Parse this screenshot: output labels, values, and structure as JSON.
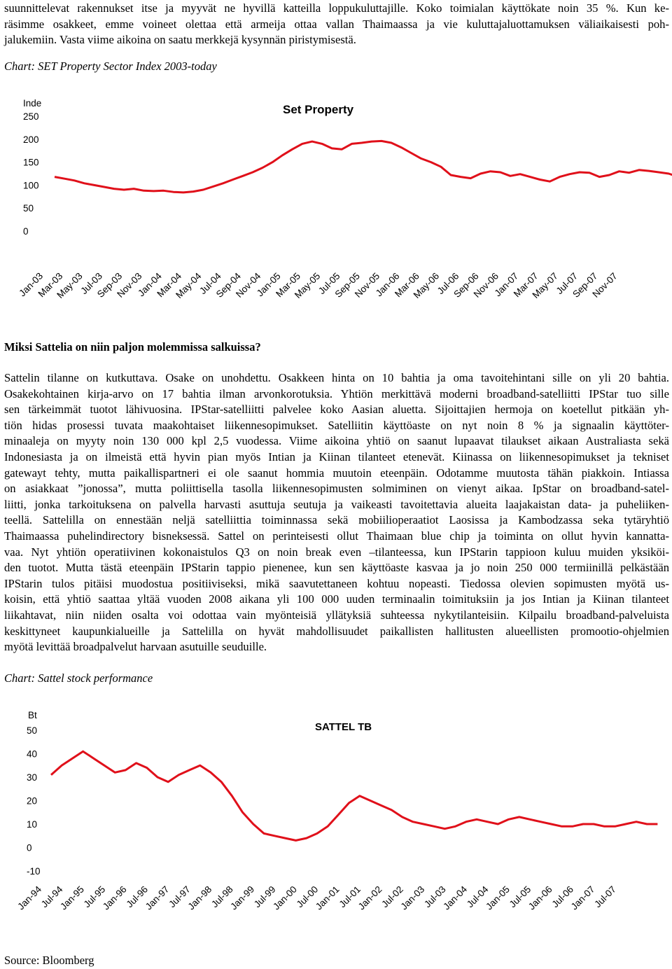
{
  "intro": {
    "lines": [
      "suunnittelevat rakennukset itse ja myyvät ne hyvillä katteilla loppukuluttajille. Koko toimialan käyttökate noin 35 %. Kun ke-",
      "räsimme osakkeet, emme voineet olettaa että armeija ottaa vallan Thaimaassa ja vie kuluttajaluottamuksen väliaikaisesti poh-",
      "jalukemiin. Vasta viime aikoina on saatu merkkejä kysynnän piristymisestä."
    ]
  },
  "chart1_caption": "Chart: SET Property Sector Index 2003-today",
  "section_heading": "Miksi Sattelia on niin paljon molemmissa salkuissa?",
  "body": {
    "lines": [
      "Sattelin tilanne on kutkuttava. Osake on unohdettu. Osakkeen hinta on 10 bahtia ja oma tavoitehintani sille on yli 20 bahtia.",
      "Osakekohtainen kirja-arvo on 17 bahtia ilman arvonkorotuksia. Yhtiön merkittävä moderni broadband-satelliitti IPStar tuo sille",
      "sen tärkeimmät tuotot lähivuosina. IPStar-satelliitti palvelee koko Aasian aluetta. Sijoittajien hermoja on koetellut pitkään yh-",
      "tiön hidas prosessi tuvata maakohtaiset liikennesopimukset. Satelliitin käyttöaste on nyt noin 8 % ja signaalin käyttöter-",
      "minaaleja on myyty noin 130 000 kpl 2,5 vuodessa. Viime aikoina yhtiö on saanut lupaavat tilaukset aikaan Australiasta sekä",
      "Indonesiasta ja on ilmeistä että hyvin pian myös Intian ja Kiinan tilanteet etenevät. Kiinassa on liikennesopimukset ja tekniset",
      "gatewayt tehty, mutta paikallispartneri ei ole saanut hommia muutoin eteenpäin. Odotamme muutosta tähän piakkoin. Intiassa",
      "on asiakkaat ”jonossa”, mutta poliittisella tasolla liikennesopimusten solmiminen on vienyt aikaa. IpStar on broadband-satel-",
      "liitti, jonka tarkoituksena on palvella harvasti asuttuja seutuja ja vaikeasti tavoitettavia alueita laajakaistan data- ja puheliiken-",
      "teellä. Sattelilla on ennestään neljä satelliittia toiminnassa sekä mobiilioperaatiot Laosissa ja Kambodzassa seka tytäryhtiö",
      "Thaimaassa puhelindirectory bisneksessä. Sattel on perinteisesti ollut Thaimaan blue chip ja toiminta on ollut hyvin kannatta-",
      "vaa. Nyt yhtiön operatiivinen kokonaistulos Q3 on noin break even –tilanteessa, kun IPStarin tappioon kuluu muiden yksiköi-",
      "den tuotot. Mutta tästä eteenpäin IPStarin tappio pienenee, kun sen käyttöaste kasvaa ja jo noin 250 000 termiinillä pelkästään",
      "IPStarin tulos pitäisi muodostua positiiviseksi, mikä saavutettaneen kohtuu nopeasti. Tiedossa olevien sopimusten myötä us-",
      "koisin, että yhtiö saattaa yltää vuoden 2008 aikana yli 100 000 uuden terminaalin toimituksiin ja jos Intian ja Kiinan tilanteet",
      "liikahtavat, niin niiden osalta voi odottaa vain myönteisiä yllätyksiä suhteessa nykytilanteisiin. Kilpailu broadband-palveluista",
      "keskittyneet kaupunkialueille ja Sattelilla on hyvät mahdollisuudet paikallisten hallitusten alueellisten promootio-ohjelmien",
      "myötä levittää broadpalvelut harvaan asutuille seuduille."
    ]
  },
  "chart2_caption": "Chart: Sattel stock performance",
  "source": "Source: Bloomberg",
  "colors": {
    "series": "#e0101a",
    "text": "#000000"
  },
  "chart_data": [
    {
      "type": "line",
      "title": "Set Property",
      "ylabel": "Inde",
      "ylim": [
        0,
        250
      ],
      "yticks": [
        "250",
        "200",
        "150",
        "100",
        "50",
        "0"
      ],
      "categories": [
        "Jan-03",
        "Mar-03",
        "May-03",
        "Jul-03",
        "Sep-03",
        "Nov-03",
        "Jan-04",
        "Mar-04",
        "May-04",
        "Jul-04",
        "Sep-04",
        "Nov-04",
        "Jan-05",
        "Mar-05",
        "May-05",
        "Jul-05",
        "Sep-05",
        "Nov-05",
        "Jan-06",
        "Mar-06",
        "May-06",
        "Jul-06",
        "Sep-06",
        "Nov-06",
        "Jan-07",
        "Mar-07",
        "May-07",
        "Jul-07",
        "Sep-07",
        "Nov-07"
      ],
      "series": [
        {
          "x": [
            0,
            0.5,
            1,
            1.5,
            2,
            2.5,
            3,
            3.5,
            4,
            4.5,
            5,
            5.5,
            6,
            6.5,
            7,
            7.5,
            8,
            8.5,
            9,
            9.5,
            10,
            10.5,
            11,
            11.5,
            12,
            12.5,
            13,
            13.5,
            14,
            14.5,
            15,
            15.5,
            16,
            16.5,
            17,
            17.5,
            18,
            18.5,
            19,
            19.5,
            20,
            20.5,
            21,
            21.5,
            22,
            22.5,
            23,
            23.5,
            24,
            24.5,
            25,
            25.5,
            26,
            26.5,
            27,
            27.5,
            28,
            28.5,
            29,
            29.5,
            30,
            30.5,
            31,
            31.5,
            32,
            32.5,
            33,
            33.5,
            34,
            34.5,
            35,
            35.5,
            36,
            36.5,
            37,
            37.5,
            38,
            38.5,
            39,
            39.5,
            40,
            40.5,
            41,
            41.5,
            42,
            42.5,
            43,
            43.5,
            44,
            44.5,
            45,
            45.5,
            46,
            46.5,
            47,
            47.5,
            48,
            48.5,
            49,
            49.5,
            50,
            50.5,
            51,
            51.5,
            52,
            52.5,
            53,
            53.5,
            54,
            54.5,
            55,
            55.5,
            56,
            56.5,
            57,
            57.5,
            58,
            58.5,
            59,
            59.5
          ],
          "values": [
            118,
            114,
            110,
            104,
            100,
            96,
            92,
            90,
            92,
            88,
            87,
            88,
            85,
            84,
            86,
            90,
            97,
            104,
            112,
            120,
            128,
            138,
            150,
            165,
            178,
            190,
            195,
            190,
            180,
            178,
            190,
            192,
            195,
            196,
            192,
            182,
            170,
            158,
            150,
            140,
            122,
            118,
            115,
            125,
            130,
            128,
            120,
            124,
            118,
            112,
            108,
            118,
            124,
            128,
            127,
            118,
            122,
            130,
            127,
            133,
            131,
            128,
            125,
            118,
            112,
            110,
            108,
            104,
            105,
            103,
            102,
            100,
            98,
            100,
            103,
            106,
            108,
            102,
            98,
            101,
            97,
            92,
            96,
            103,
            110,
            112,
            115,
            110,
            106,
            110,
            114,
            108,
            112,
            118,
            110,
            116,
            120,
            114,
            112,
            118,
            115,
            116,
            112,
            114,
            118,
            116,
            112,
            120,
            122,
            124,
            125,
            130,
            138,
            140,
            132,
            130,
            136,
            134,
            135,
            132
          ]
        }
      ]
    },
    {
      "type": "line",
      "title": "SATTEL TB",
      "ylabel": "Bt",
      "ylim": [
        -10,
        50
      ],
      "yticks": [
        "50",
        "40",
        "30",
        "20",
        "10",
        "0",
        "-10"
      ],
      "categories": [
        "Jan-94",
        "Jul-94",
        "Jan-95",
        "Jul-95",
        "Jan-96",
        "Jul-96",
        "Jan-97",
        "Jul-97",
        "Jan-98",
        "Jul-98",
        "Jan-99",
        "Jul-99",
        "Jan-00",
        "Jul-00",
        "Jan-01",
        "Jul-01",
        "Jan-02",
        "Jul-02",
        "Jan-03",
        "Jul-03",
        "Jan-04",
        "Jul-04",
        "Jan-05",
        "Jul-05",
        "Jan-06",
        "Jul-06",
        "Jan-07",
        "Jul-07"
      ],
      "series": [
        {
          "x": [
            0,
            0.5,
            1,
            1.5,
            2,
            2.5,
            3,
            3.5,
            4,
            4.5,
            5,
            5.5,
            6,
            6.5,
            7,
            7.5,
            8,
            8.5,
            9,
            9.5,
            10,
            10.5,
            11,
            11.5,
            12,
            12.5,
            13,
            13.5,
            14,
            14.5,
            15,
            15.5,
            16,
            16.5,
            17,
            17.5,
            18,
            18.5,
            19,
            19.5,
            20,
            20.5,
            21,
            21.5,
            22,
            22.5,
            23,
            23.5,
            24,
            24.5,
            25,
            25.5,
            26,
            26.5,
            27,
            27.5,
            28,
            28.5
          ],
          "values": [
            31,
            35,
            38,
            41,
            38,
            35,
            32,
            33,
            36,
            34,
            30,
            28,
            31,
            33,
            35,
            32,
            28,
            22,
            15,
            10,
            6,
            5,
            4,
            3,
            4,
            6,
            9,
            14,
            19,
            22,
            20,
            18,
            16,
            13,
            11,
            10,
            9,
            8,
            9,
            11,
            12,
            11,
            10,
            12,
            13,
            12,
            11,
            10,
            9,
            9,
            10,
            10,
            9,
            9,
            10,
            11,
            10,
            10
          ]
        }
      ]
    }
  ]
}
